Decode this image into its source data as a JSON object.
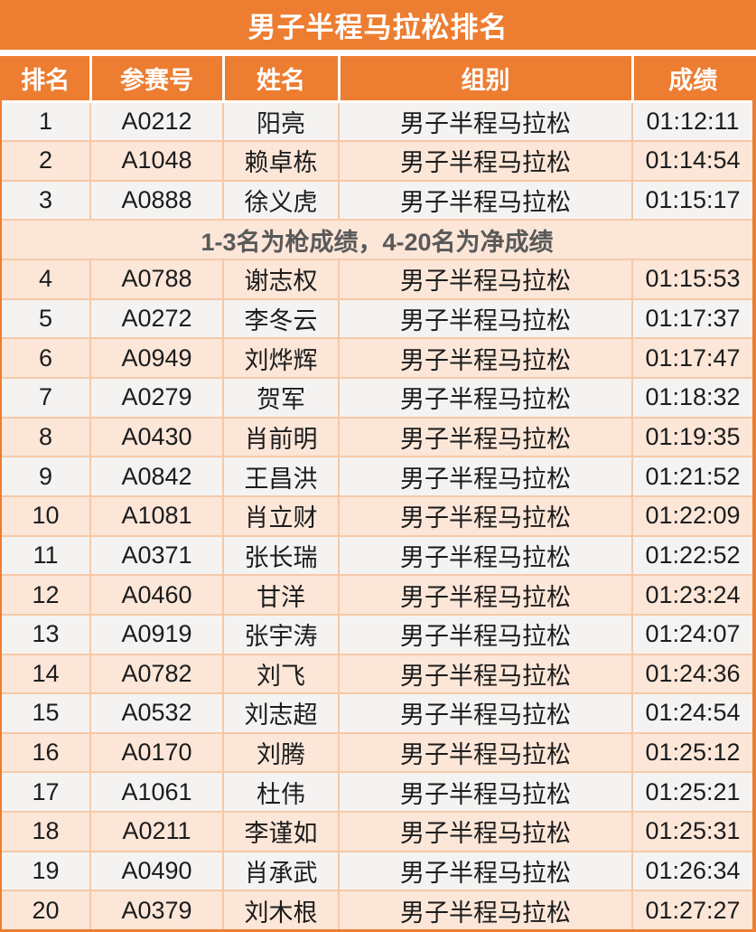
{
  "page_title": "男子半程马拉松排名",
  "colors": {
    "accent_orange": "#ED7D31",
    "grid_line": "#F6C9A6",
    "row_peach": "#FBE6D8",
    "row_gray": "#F4F3F2",
    "note_text": "#595959",
    "header_text": "#FFFFFF",
    "data_text": "#1C1C1C"
  },
  "table": {
    "headers": [
      {
        "key": "rank",
        "label": "排名"
      },
      {
        "key": "bib",
        "label": "参赛号"
      },
      {
        "key": "name",
        "label": "姓名"
      },
      {
        "key": "group",
        "label": "组别"
      },
      {
        "key": "time",
        "label": "成绩"
      }
    ],
    "note": {
      "text": "1-3名为枪成绩，4-20名为净成绩",
      "after_rank": 3
    },
    "rows": [
      {
        "rank": "1",
        "bib": "A0212",
        "name": "阳亮",
        "group": "男子半程马拉松",
        "time": "01:12:11"
      },
      {
        "rank": "2",
        "bib": "A1048",
        "name": "赖卓栋",
        "group": "男子半程马拉松",
        "time": "01:14:54"
      },
      {
        "rank": "3",
        "bib": "A0888",
        "name": "徐义虎",
        "group": "男子半程马拉松",
        "time": "01:15:17"
      },
      {
        "rank": "4",
        "bib": "A0788",
        "name": "谢志权",
        "group": "男子半程马拉松",
        "time": "01:15:53"
      },
      {
        "rank": "5",
        "bib": "A0272",
        "name": "李冬云",
        "group": "男子半程马拉松",
        "time": "01:17:37"
      },
      {
        "rank": "6",
        "bib": "A0949",
        "name": "刘烨辉",
        "group": "男子半程马拉松",
        "time": "01:17:47"
      },
      {
        "rank": "7",
        "bib": "A0279",
        "name": "贺军",
        "group": "男子半程马拉松",
        "time": "01:18:32"
      },
      {
        "rank": "8",
        "bib": "A0430",
        "name": "肖前明",
        "group": "男子半程马拉松",
        "time": "01:19:35"
      },
      {
        "rank": "9",
        "bib": "A0842",
        "name": "王昌洪",
        "group": "男子半程马拉松",
        "time": "01:21:52"
      },
      {
        "rank": "10",
        "bib": "A1081",
        "name": "肖立财",
        "group": "男子半程马拉松",
        "time": "01:22:09"
      },
      {
        "rank": "11",
        "bib": "A0371",
        "name": "张长瑞",
        "group": "男子半程马拉松",
        "time": "01:22:52"
      },
      {
        "rank": "12",
        "bib": "A0460",
        "name": "甘洋",
        "group": "男子半程马拉松",
        "time": "01:23:24"
      },
      {
        "rank": "13",
        "bib": "A0919",
        "name": "张宇涛",
        "group": "男子半程马拉松",
        "time": "01:24:07"
      },
      {
        "rank": "14",
        "bib": "A0782",
        "name": "刘飞",
        "group": "男子半程马拉松",
        "time": "01:24:36"
      },
      {
        "rank": "15",
        "bib": "A0532",
        "name": "刘志超",
        "group": "男子半程马拉松",
        "time": "01:24:54"
      },
      {
        "rank": "16",
        "bib": "A0170",
        "name": "刘腾",
        "group": "男子半程马拉松",
        "time": "01:25:12"
      },
      {
        "rank": "17",
        "bib": "A1061",
        "name": "杜伟",
        "group": "男子半程马拉松",
        "time": "01:25:21"
      },
      {
        "rank": "18",
        "bib": "A0211",
        "name": "李谨如",
        "group": "男子半程马拉松",
        "time": "01:25:31"
      },
      {
        "rank": "19",
        "bib": "A0490",
        "name": "肖承武",
        "group": "男子半程马拉松",
        "time": "01:26:34"
      },
      {
        "rank": "20",
        "bib": "A0379",
        "name": "刘木根",
        "group": "男子半程马拉松",
        "time": "01:27:27"
      }
    ]
  }
}
